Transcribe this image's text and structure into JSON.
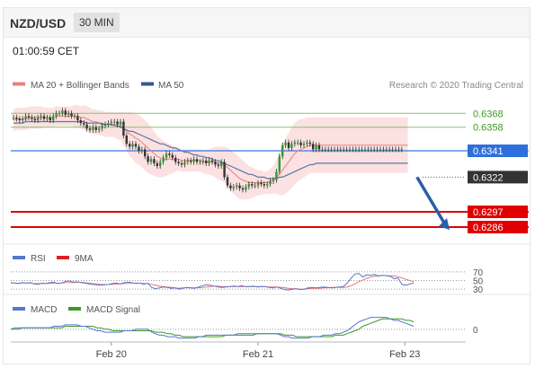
{
  "header": {
    "pair": "NZD/USD",
    "timeframe": "30 MIN",
    "timestamp": "01:00:59 CET"
  },
  "legend": {
    "ma20_label": "MA 20 + Bollinger Bands",
    "ma50_label": "MA 50",
    "credit": "Research © 2020 Trading Central",
    "ma20_color": "#e88080",
    "ma50_color": "#34598f",
    "band_color": "#f7c9c9"
  },
  "chart_data": [
    {
      "type": "line",
      "panel": "price",
      "ylim": [
        0.6275,
        0.6385
      ],
      "x_ticks": [
        {
          "label": "Feb 20",
          "index": 32
        },
        {
          "label": "Feb 21",
          "index": 80
        },
        {
          "label": "Feb 23",
          "index": 128
        }
      ],
      "close": [
        0.6365,
        0.6364,
        0.6363,
        0.6364,
        0.6366,
        0.6365,
        0.6364,
        0.6363,
        0.6365,
        0.6366,
        0.6364,
        0.6365,
        0.6363,
        0.6366,
        0.6368,
        0.6368,
        0.637,
        0.6367,
        0.6368,
        0.6366,
        0.6366,
        0.6363,
        0.6361,
        0.636,
        0.6357,
        0.6356,
        0.6358,
        0.6356,
        0.6357,
        0.6359,
        0.636,
        0.6361,
        0.6362,
        0.6362,
        0.636,
        0.6362,
        0.6352,
        0.6346,
        0.6344,
        0.6346,
        0.6344,
        0.6341,
        0.6342,
        0.6337,
        0.6333,
        0.6335,
        0.6332,
        0.633,
        0.6333,
        0.6336,
        0.6339,
        0.6338,
        0.6336,
        0.6333,
        0.6332,
        0.6331,
        0.6333,
        0.6334,
        0.6333,
        0.6335,
        0.6333,
        0.6333,
        0.6334,
        0.6332,
        0.6334,
        0.6333,
        0.6331,
        0.633,
        0.6333,
        0.6322,
        0.6316,
        0.6314,
        0.6315,
        0.6316,
        0.6314,
        0.6313,
        0.6315,
        0.6317,
        0.6316,
        0.6316,
        0.6318,
        0.6317,
        0.6316,
        0.6317,
        0.6319,
        0.632,
        0.6326,
        0.6337,
        0.6345,
        0.6347,
        0.6343,
        0.6346,
        0.6347,
        0.6347,
        0.6345,
        0.6346,
        0.6347,
        0.6346,
        0.6342,
        0.6345,
        0.6342,
        0.6342,
        0.6342,
        0.6342,
        0.6342,
        0.6342,
        0.6342,
        0.6342,
        0.6342,
        0.6342,
        0.6342,
        0.6342,
        0.6342,
        0.6342,
        0.6342,
        0.6342,
        0.6342,
        0.6342,
        0.6342,
        0.6342,
        0.6342,
        0.6342,
        0.6342,
        0.6342,
        0.6342,
        0.6342,
        0.6342,
        0.6342
      ],
      "ma20": [
        0.6363,
        0.6364,
        0.6364,
        0.6364,
        0.6364,
        0.6365,
        0.6365,
        0.6365,
        0.6365,
        0.6365,
        0.6365,
        0.6365,
        0.6365,
        0.6365,
        0.6366,
        0.6366,
        0.6366,
        0.6366,
        0.6366,
        0.6366,
        0.6366,
        0.6366,
        0.6365,
        0.6365,
        0.6364,
        0.6363,
        0.6362,
        0.6362,
        0.6361,
        0.6361,
        0.636,
        0.636,
        0.636,
        0.636,
        0.6359,
        0.6359,
        0.6357,
        0.6355,
        0.6353,
        0.6352,
        0.635,
        0.6349,
        0.6347,
        0.6345,
        0.6343,
        0.6341,
        0.6339,
        0.6337,
        0.6336,
        0.6335,
        0.6335,
        0.6335,
        0.6335,
        0.6335,
        0.6335,
        0.6334,
        0.6334,
        0.6334,
        0.6334,
        0.6334,
        0.6334,
        0.6334,
        0.6333,
        0.6333,
        0.6333,
        0.6333,
        0.6333,
        0.6332,
        0.6332,
        0.6331,
        0.6329,
        0.6327,
        0.6325,
        0.6323,
        0.6321,
        0.632,
        0.6319,
        0.6318,
        0.6318,
        0.6318,
        0.6318,
        0.6318,
        0.6318,
        0.6318,
        0.6319,
        0.632,
        0.6322,
        0.6324,
        0.6327,
        0.633,
        0.6333,
        0.6336,
        0.6339,
        0.6341,
        0.6342,
        0.6343,
        0.6344,
        0.6345,
        0.6345,
        0.6345,
        0.6345,
        0.6345,
        0.6345,
        0.6345,
        0.6345,
        0.6345,
        0.6345,
        0.6345,
        0.6345,
        0.6345,
        0.6345,
        0.6345,
        0.6345,
        0.6345,
        0.6345,
        0.6345,
        0.6345,
        0.6345,
        0.6345,
        0.6345,
        0.6345,
        0.6345,
        0.6345,
        0.6345,
        0.6345,
        0.6345,
        0.6345,
        0.6345,
        0.6345,
        0.6345
      ],
      "ma50": [
        0.6361,
        0.6361,
        0.6361,
        0.6361,
        0.6362,
        0.6362,
        0.6362,
        0.6362,
        0.6362,
        0.6362,
        0.6362,
        0.6362,
        0.6362,
        0.6362,
        0.6362,
        0.6362,
        0.6362,
        0.6362,
        0.6362,
        0.6362,
        0.6362,
        0.6362,
        0.6362,
        0.6362,
        0.6361,
        0.6361,
        0.6361,
        0.6361,
        0.6361,
        0.636,
        0.636,
        0.636,
        0.636,
        0.6359,
        0.6359,
        0.6358,
        0.6357,
        0.6356,
        0.6355,
        0.6355,
        0.6354,
        0.6353,
        0.6352,
        0.6351,
        0.635,
        0.6349,
        0.6348,
        0.6347,
        0.6346,
        0.6346,
        0.6345,
        0.6344,
        0.6343,
        0.6343,
        0.6342,
        0.6341,
        0.634,
        0.634,
        0.6339,
        0.6338,
        0.6338,
        0.6337,
        0.6337,
        0.6336,
        0.6336,
        0.6335,
        0.6334,
        0.6334,
        0.6333,
        0.6332,
        0.6331,
        0.633,
        0.6329,
        0.6328,
        0.6327,
        0.6326,
        0.6325,
        0.6324,
        0.6324,
        0.6323,
        0.6322,
        0.6322,
        0.6322,
        0.6321,
        0.6321,
        0.6321,
        0.6321,
        0.6322,
        0.6322,
        0.6323,
        0.6324,
        0.6325,
        0.6326,
        0.6327,
        0.6328,
        0.6329,
        0.633,
        0.6331,
        0.6331,
        0.6332,
        0.6332,
        0.6332,
        0.6332,
        0.6332,
        0.6332,
        0.6332,
        0.6332,
        0.6332,
        0.6332,
        0.6332,
        0.6332,
        0.6332,
        0.6332,
        0.6332,
        0.6332,
        0.6332,
        0.6332,
        0.6332,
        0.6332,
        0.6332,
        0.6332,
        0.6332,
        0.6332,
        0.6332,
        0.6332,
        0.6332,
        0.6332,
        0.6332,
        0.6332,
        0.6332
      ],
      "bollinger_width": [
        0.0008,
        0.0008,
        0.0008,
        0.0008,
        0.0008,
        0.0008,
        0.0008,
        0.0008,
        0.0008,
        0.0008,
        0.0007,
        0.0007,
        0.0007,
        0.0007,
        0.0007,
        0.0007,
        0.0007,
        0.0007,
        0.0007,
        0.0007,
        0.0008,
        0.0008,
        0.0008,
        0.0009,
        0.0009,
        0.0009,
        0.0009,
        0.0009,
        0.0009,
        0.0009,
        0.0009,
        0.0009,
        0.0009,
        0.0009,
        0.001,
        0.001,
        0.0012,
        0.0014,
        0.0016,
        0.0017,
        0.0018,
        0.0018,
        0.0018,
        0.0018,
        0.0018,
        0.0017,
        0.0016,
        0.0015,
        0.0014,
        0.0013,
        0.0012,
        0.0011,
        0.001,
        0.0009,
        0.0008,
        0.0008,
        0.0008,
        0.0008,
        0.0008,
        0.0008,
        0.0008,
        0.0008,
        0.0008,
        0.0009,
        0.0009,
        0.001,
        0.0011,
        0.0012,
        0.0012,
        0.0013,
        0.0014,
        0.0015,
        0.0015,
        0.0015,
        0.0015,
        0.0014,
        0.0013,
        0.0012,
        0.0011,
        0.001,
        0.0009,
        0.0009,
        0.0008,
        0.0008,
        0.0009,
        0.001,
        0.0012,
        0.0015,
        0.0018,
        0.002,
        0.0021,
        0.0022,
        0.0022,
        0.0022,
        0.0022,
        0.0021,
        0.0021,
        0.002,
        0.002,
        0.002,
        0.002,
        0.002,
        0.002,
        0.002,
        0.002,
        0.002,
        0.002,
        0.002,
        0.002,
        0.002,
        0.002,
        0.002,
        0.002,
        0.002,
        0.002,
        0.002,
        0.002,
        0.002,
        0.002,
        0.002,
        0.002,
        0.002,
        0.002,
        0.002,
        0.002,
        0.002,
        0.002,
        0.002,
        0.002,
        0.002
      ],
      "levels": [
        {
          "value": 0.6368,
          "label": "0.6368",
          "kind": "green"
        },
        {
          "value": 0.6358,
          "label": "0.6358",
          "kind": "green"
        },
        {
          "value": 0.6341,
          "label": "0.6341",
          "kind": "pivot"
        },
        {
          "value": 0.6322,
          "label": "0.6322",
          "kind": "last"
        },
        {
          "value": 0.6297,
          "label": "0.6297",
          "kind": "target"
        },
        {
          "value": 0.6286,
          "label": "0.6286",
          "kind": "target"
        }
      ],
      "arrow": {
        "from_index": 132,
        "from_value": 0.6322,
        "to_index": 145,
        "to_value": 0.6286
      }
    },
    {
      "type": "line",
      "panel": "rsi",
      "ylim": [
        20,
        80
      ],
      "levels": [
        70,
        50,
        30
      ],
      "series": [
        {
          "name": "RSI",
          "color": "#5577cc"
        },
        {
          "name": "9MA",
          "color": "#e02020"
        }
      ],
      "rsi": [
        45,
        44,
        43,
        45,
        44,
        45,
        42,
        41,
        44,
        43,
        45,
        46,
        43,
        44,
        48,
        49,
        46,
        47,
        45,
        44,
        42,
        41,
        40,
        39,
        40,
        41,
        43,
        44,
        42,
        45,
        46,
        45,
        43,
        44,
        41,
        44,
        34,
        31,
        33,
        35,
        34,
        32,
        33,
        30,
        32,
        34,
        33,
        32,
        35,
        38,
        40,
        39,
        37,
        35,
        34,
        35,
        36,
        37,
        36,
        38,
        36,
        36,
        37,
        35,
        36,
        36,
        34,
        33,
        35,
        32,
        29,
        28,
        30,
        31,
        29,
        30,
        33,
        34,
        33,
        34,
        35,
        34,
        33,
        34,
        35,
        36,
        44,
        55,
        65,
        66,
        58,
        63,
        62,
        64,
        60,
        62,
        61,
        60,
        54,
        56,
        41,
        39,
        42,
        44
      ],
      "ma9": [
        44,
        44,
        44,
        44,
        44,
        44,
        43,
        43,
        43,
        43,
        43,
        44,
        44,
        44,
        45,
        45,
        45,
        46,
        46,
        45,
        44,
        43,
        42,
        41,
        41,
        41,
        41,
        42,
        42,
        43,
        43,
        44,
        44,
        44,
        43,
        43,
        41,
        39,
        37,
        36,
        35,
        34,
        33,
        32,
        33,
        33,
        33,
        33,
        33,
        34,
        35,
        36,
        37,
        37,
        36,
        36,
        36,
        36,
        36,
        36,
        36,
        36,
        36,
        36,
        36,
        36,
        35,
        35,
        35,
        34,
        33,
        32,
        31,
        31,
        30,
        30,
        31,
        32,
        32,
        32,
        33,
        33,
        34,
        34,
        34,
        34,
        35,
        38,
        42,
        47,
        51,
        55,
        58,
        60,
        61,
        62,
        61,
        61,
        60,
        59,
        56,
        53,
        50,
        47
      ]
    },
    {
      "type": "line",
      "panel": "macd",
      "ylim": [
        -0.0008,
        0.0009
      ],
      "levels": [
        0
      ],
      "series": [
        {
          "name": "MACD",
          "color": "#5577cc"
        },
        {
          "name": "MACD Signal",
          "color": "#3a9a28"
        }
      ],
      "macd": [
        0.0,
        0.0001,
        0.0001,
        0.0001,
        0.0001,
        0.0001,
        0.0001,
        0.0001,
        0.0001,
        0.0001,
        0.0001,
        0.0002,
        0.0002,
        0.0002,
        0.0003,
        0.0003,
        0.0003,
        0.0003,
        0.0002,
        0.0002,
        0.0001,
        0.0,
        -0.0001,
        -0.0001,
        -0.0002,
        -0.0002,
        -0.0002,
        -0.0002,
        -0.0002,
        -0.0001,
        -0.0001,
        -0.0001,
        0.0,
        0.0,
        0.0,
        0.0,
        -0.0002,
        -0.0003,
        -0.0004,
        -0.0004,
        -0.0005,
        -0.0005,
        -0.0005,
        -0.0006,
        -0.0006,
        -0.0006,
        -0.0006,
        -0.0006,
        -0.0005,
        -0.0005,
        -0.0004,
        -0.0004,
        -0.0004,
        -0.0004,
        -0.0004,
        -0.0004,
        -0.0004,
        -0.0004,
        -0.0003,
        -0.0003,
        -0.0003,
        -0.0003,
        -0.0003,
        -0.0003,
        -0.0003,
        -0.0003,
        -0.0003,
        -0.0003,
        -0.0003,
        -0.0004,
        -0.0005,
        -0.0005,
        -0.0006,
        -0.0006,
        -0.0006,
        -0.0006,
        -0.0006,
        -0.0005,
        -0.0005,
        -0.0005,
        -0.0004,
        -0.0004,
        -0.0004,
        -0.0003,
        -0.0003,
        -0.0002,
        -0.0001,
        0.0001,
        0.0003,
        0.0005,
        0.0006,
        0.0007,
        0.0008,
        0.0008,
        0.0008,
        0.0008,
        0.0008,
        0.0007,
        0.0006,
        0.0006,
        0.0005,
        0.0004,
        0.0003,
        0.0002
      ],
      "signal": [
        0.0,
        0.0,
        0.0,
        0.0001,
        0.0001,
        0.0001,
        0.0001,
        0.0001,
        0.0001,
        0.0001,
        0.0001,
        0.0001,
        0.0001,
        0.0001,
        0.0002,
        0.0002,
        0.0002,
        0.0002,
        0.0002,
        0.0002,
        0.0002,
        0.0002,
        0.0001,
        0.0001,
        0.0,
        0.0,
        -0.0001,
        -0.0001,
        -0.0001,
        -0.0001,
        -0.0001,
        -0.0001,
        -0.0001,
        -0.0001,
        -0.0001,
        -0.0001,
        -0.0001,
        -0.0002,
        -0.0002,
        -0.0002,
        -0.0003,
        -0.0003,
        -0.0004,
        -0.0004,
        -0.0005,
        -0.0005,
        -0.0005,
        -0.0005,
        -0.0005,
        -0.0005,
        -0.0005,
        -0.0005,
        -0.0005,
        -0.0005,
        -0.0005,
        -0.0004,
        -0.0004,
        -0.0004,
        -0.0004,
        -0.0004,
        -0.0004,
        -0.0004,
        -0.0004,
        -0.0003,
        -0.0003,
        -0.0003,
        -0.0003,
        -0.0003,
        -0.0003,
        -0.0003,
        -0.0004,
        -0.0004,
        -0.0004,
        -0.0005,
        -0.0005,
        -0.0005,
        -0.0005,
        -0.0005,
        -0.0005,
        -0.0005,
        -0.0005,
        -0.0005,
        -0.0005,
        -0.0004,
        -0.0004,
        -0.0004,
        -0.0003,
        -0.0002,
        -0.0001,
        0.0,
        0.0002,
        0.0003,
        0.0004,
        0.0005,
        0.0006,
        0.0007,
        0.0007,
        0.0007,
        0.0007,
        0.0007,
        0.0007,
        0.0006,
        0.0006,
        0.0005
      ]
    }
  ],
  "rsi_legend": {
    "rsi_label": "RSI",
    "ma_label": "9MA",
    "levels": [
      "70",
      "50",
      "30"
    ]
  },
  "macd_legend": {
    "macd_label": "MACD",
    "signal_label": "MACD Signal",
    "zero": "0"
  }
}
